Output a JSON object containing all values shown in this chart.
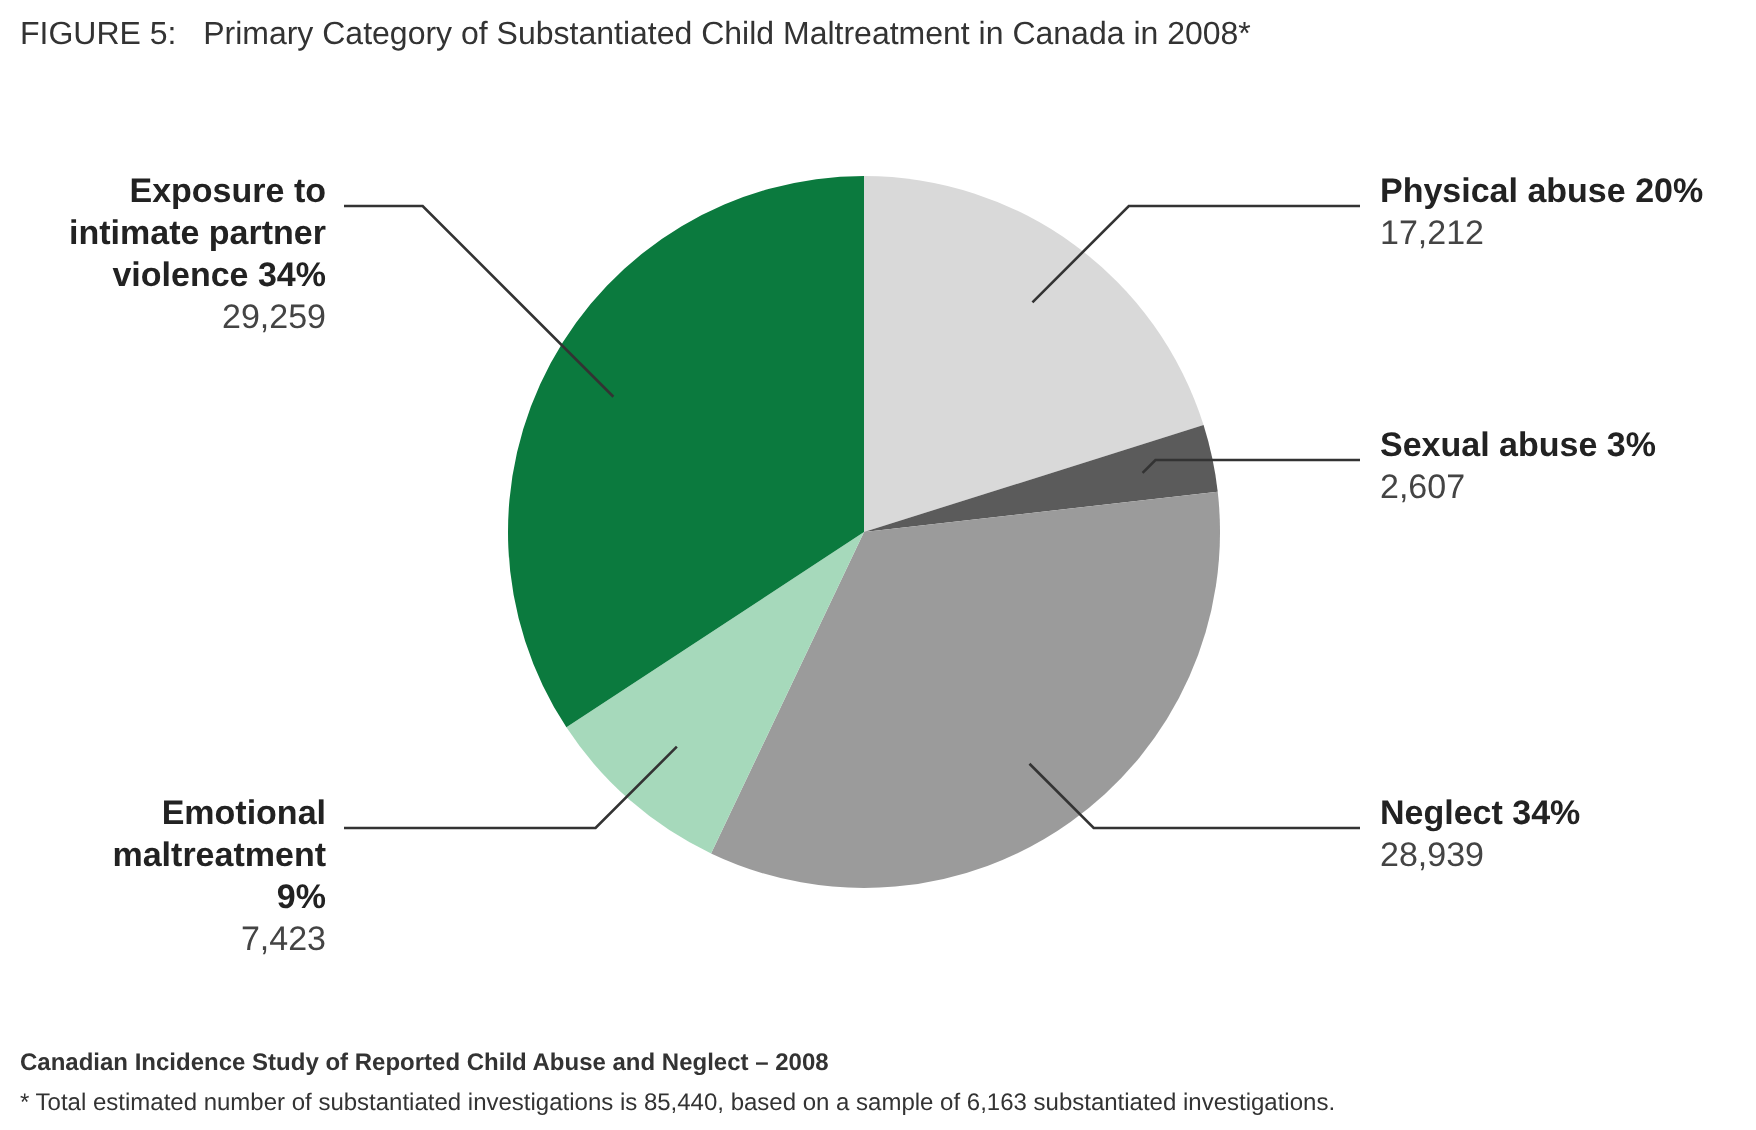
{
  "chart_data": {
    "type": "pie",
    "title": "FIGURE 5:   Primary Category of Substantiated Child Maltreatment in Canada in 2008*",
    "categories": [
      "Physical abuse 20%",
      "Sexual abuse 3%",
      "Neglect 34%",
      "Emotional maltreatment 9%",
      "Exposure to intimate partner violence 34%"
    ],
    "values": [
      17212,
      2607,
      28939,
      7423,
      29259
    ],
    "value_labels": [
      "17,212",
      "2,607",
      "28,939",
      "7,423",
      "29,259"
    ],
    "colors": [
      "#d9d9d9",
      "#5b5b5b",
      "#9b9b9b",
      "#a6d9bb",
      "#0b7a3e"
    ],
    "annotations": [
      "Canadian Incidence Study of Reported Child Abuse and Neglect – 2008",
      "*  Total estimated number of substantiated investigations is 85,440, based on a sample of 6,163 substantiated investigations."
    ]
  }
}
